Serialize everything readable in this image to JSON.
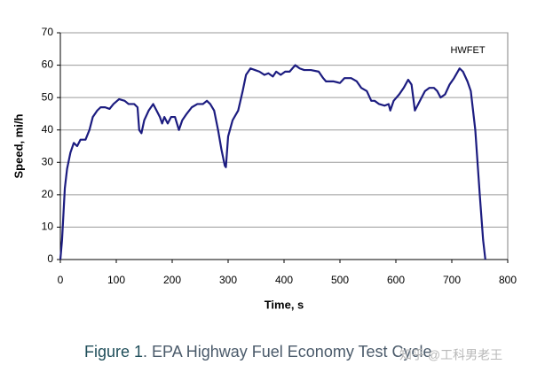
{
  "chart_data": {
    "type": "line",
    "annotation": "HWFET",
    "x_label": "Time, s",
    "y_label": "Speed, mi/h",
    "caption_label": "Figure 1",
    "caption": ". EPA Highway Fuel Economy Test Cycle",
    "watermark": "知乎 @工科男老王",
    "xlim": [
      0,
      800
    ],
    "xticks": [
      0,
      100,
      200,
      300,
      400,
      500,
      600,
      700,
      800
    ],
    "ylim": [
      0,
      70
    ],
    "yticks": [
      0,
      10,
      20,
      30,
      40,
      50,
      60,
      70
    ],
    "grid": true,
    "x": [
      0,
      3,
      8,
      12,
      18,
      24,
      30,
      36,
      45,
      52,
      58,
      66,
      72,
      80,
      88,
      95,
      105,
      115,
      122,
      132,
      138,
      141,
      145,
      150,
      158,
      166,
      172,
      178,
      182,
      186,
      192,
      198,
      205,
      212,
      218,
      226,
      235,
      245,
      255,
      262,
      268,
      275,
      282,
      288,
      294,
      296,
      300,
      308,
      318,
      326,
      332,
      340,
      348,
      356,
      365,
      372,
      380,
      386,
      394,
      402,
      410,
      420,
      428,
      436,
      448,
      462,
      470,
      475,
      488,
      500,
      508,
      520,
      530,
      538,
      548,
      556,
      562,
      570,
      580,
      587,
      590,
      596,
      606,
      614,
      622,
      628,
      634,
      640,
      646,
      652,
      660,
      668,
      674,
      680,
      688,
      696,
      704,
      714,
      720,
      728,
      734,
      742,
      750,
      756,
      760
    ],
    "series": [
      {
        "name": "HWFET",
        "color": "#1c1c80",
        "values": [
          0,
          6,
          22,
          28,
          33,
          36,
          35,
          37,
          37,
          40,
          44,
          46,
          47,
          47,
          46.5,
          48,
          49.5,
          49,
          48,
          48,
          47,
          40,
          39,
          43,
          46,
          48,
          46,
          44,
          42,
          44,
          42,
          44,
          44,
          40,
          43,
          45,
          47,
          48,
          48,
          49,
          48,
          46,
          40,
          34,
          29,
          28.5,
          38,
          43,
          46,
          52,
          57,
          59,
          58.5,
          58,
          57,
          57.5,
          56.5,
          58,
          57,
          58,
          58,
          60,
          59,
          58.5,
          58.5,
          58,
          56,
          55,
          55,
          54.5,
          56,
          56,
          55,
          53,
          52,
          49,
          49,
          48,
          47.5,
          48,
          46,
          49,
          51,
          53,
          55.5,
          54,
          46,
          48,
          50,
          52,
          53,
          53,
          52,
          50,
          51,
          54,
          56,
          59,
          58,
          55,
          52,
          40,
          20,
          6,
          0
        ]
      }
    ]
  }
}
